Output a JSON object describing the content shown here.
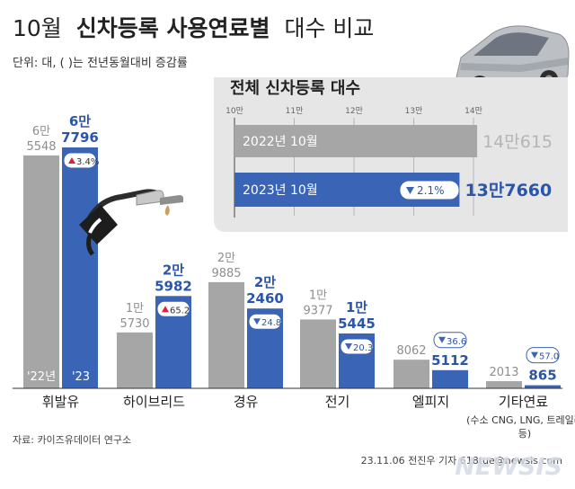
{
  "header": {
    "title_plain_1": "10월",
    "title_bold": "신차등록 사용연료별",
    "title_plain_2": "대수 비교",
    "unit_note": "단위: 대, ( )는 전년동월대비 증감률"
  },
  "colors": {
    "prev": "#a6a6a6",
    "curr": "#3a64b5",
    "curr_text": "#2a55a8",
    "prev_text": "#8e8e8e",
    "up": "#e0203a",
    "panel_bg": "#e6e6e6"
  },
  "chart_data": [
    {
      "type": "bar",
      "title": "10월 신차등록 사용연료별 대수 비교",
      "unit": "대",
      "categories": [
        "휘발유",
        "하이브리드",
        "경유",
        "전기",
        "엘피지",
        "기타연료"
      ],
      "category_note": "(수소 CNG, LNG, 트레일러 등)",
      "series": [
        {
          "name": "'22년",
          "values": [
            65548,
            15730,
            29885,
            19377,
            8062,
            2013
          ],
          "labels_top": [
            "6만",
            "1만",
            "2만",
            "1만",
            "",
            ""
          ],
          "labels_bottom": [
            "5548",
            "5730",
            "9885",
            "9377",
            "8062",
            "2013"
          ]
        },
        {
          "name": "'23",
          "values": [
            67796,
            25982,
            22460,
            15445,
            5112,
            865
          ],
          "labels_top": [
            "6만",
            "2만",
            "2만",
            "1만",
            "",
            ""
          ],
          "labels_bottom": [
            "7796",
            "5982",
            "2460",
            "5445",
            "5112",
            "865"
          ]
        }
      ],
      "change_pct": [
        "3.4%",
        "65.2",
        "24.8",
        "20.3",
        "36.6",
        "57.0"
      ],
      "change_dir": [
        "up",
        "up",
        "down",
        "down",
        "down",
        "down"
      ]
    },
    {
      "type": "bar",
      "orientation": "horizontal",
      "title": "전체 신차등록 대수",
      "ticks": [
        "10만",
        "11만",
        "12만",
        "13만",
        "14만"
      ],
      "xlim": [
        100000,
        140000
      ],
      "categories": [
        "2022년 10월",
        "2023년 10월"
      ],
      "values": [
        140615,
        137660
      ],
      "value_labels": [
        "14만615",
        "13만7660"
      ],
      "change": "2.1%",
      "change_dir": "down"
    }
  ],
  "footer": {
    "source": "자료: 카이즈유데이터 연구소",
    "credit": "23.11.06 전진우 기자 618tue@newsis.com",
    "watermark": "NEWSIS"
  }
}
